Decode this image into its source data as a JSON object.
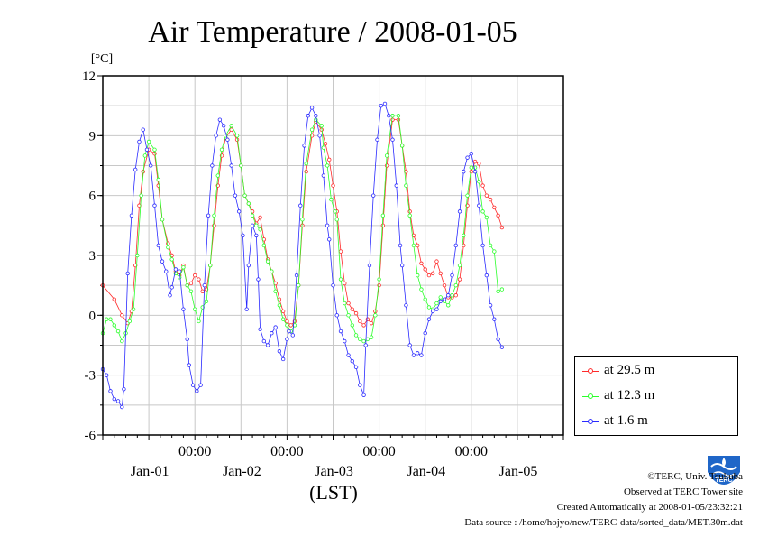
{
  "chart_data": {
    "type": "line",
    "title": "Air Temperature / 2008-01-05",
    "ylabel": "[°C]",
    "xlabel": "(LST)",
    "ylim": [
      -6,
      12
    ],
    "yticks": [
      -6,
      -3,
      0,
      3,
      6,
      9,
      12
    ],
    "xlim": [
      0,
      120
    ],
    "x_tick_labels": [
      {
        "x": 24,
        "time": "00:00",
        "date": "Jan-01"
      },
      {
        "x": 48,
        "time": "00:00",
        "date": "Jan-02"
      },
      {
        "x": 72,
        "time": "00:00",
        "date": "Jan-03"
      },
      {
        "x": 96,
        "time": "00:00",
        "date": "Jan-04"
      },
      {
        "x": 120,
        "time": "",
        "date": "Jan-05"
      }
    ],
    "grid": true,
    "series": [
      {
        "name": "at 29.5 m",
        "color": "#ff2a2a",
        "points": [
          [
            0,
            1.5
          ],
          [
            3,
            0.8
          ],
          [
            5,
            0.0
          ],
          [
            6.5,
            -0.4
          ],
          [
            7.5,
            0.2
          ],
          [
            8.5,
            2.5
          ],
          [
            9.5,
            5.5
          ],
          [
            10.5,
            7.2
          ],
          [
            12,
            8.3
          ],
          [
            13.5,
            8.1
          ],
          [
            14.5,
            6.5
          ],
          [
            15.5,
            4.8
          ],
          [
            17,
            3.6
          ],
          [
            18,
            3.0
          ],
          [
            19,
            2.2
          ],
          [
            20,
            2.0
          ],
          [
            21,
            2.5
          ],
          [
            22,
            1.5
          ],
          [
            23,
            1.6
          ],
          [
            24,
            2.0
          ],
          [
            25,
            1.8
          ],
          [
            26,
            1.2
          ],
          [
            27,
            1.3
          ],
          [
            28,
            2.5
          ],
          [
            29,
            4.5
          ],
          [
            30,
            6.5
          ],
          [
            31,
            8.0
          ],
          [
            32,
            8.9
          ],
          [
            33.5,
            9.3
          ],
          [
            35,
            8.8
          ],
          [
            36,
            7.5
          ],
          [
            37,
            6.0
          ],
          [
            38,
            5.6
          ],
          [
            39,
            5.2
          ],
          [
            40,
            4.6
          ],
          [
            41,
            4.9
          ],
          [
            42,
            3.8
          ],
          [
            43,
            2.8
          ],
          [
            44,
            2.2
          ],
          [
            45,
            1.6
          ],
          [
            46,
            0.8
          ],
          [
            47,
            0.2
          ],
          [
            48,
            -0.3
          ],
          [
            49,
            -0.5
          ],
          [
            50,
            -0.3
          ],
          [
            51,
            1.5
          ],
          [
            52,
            4.5
          ],
          [
            53,
            7.2
          ],
          [
            54.5,
            9.0
          ],
          [
            55.5,
            9.7
          ],
          [
            57,
            9.3
          ],
          [
            58,
            8.6
          ],
          [
            59,
            7.8
          ],
          [
            60,
            6.5
          ],
          [
            61,
            5.2
          ],
          [
            62,
            3.2
          ],
          [
            63,
            1.6
          ],
          [
            64,
            0.6
          ],
          [
            65,
            0.3
          ],
          [
            66,
            0.1
          ],
          [
            67,
            -0.3
          ],
          [
            68,
            -0.5
          ],
          [
            69,
            -0.2
          ],
          [
            70,
            -0.4
          ],
          [
            71,
            0.2
          ],
          [
            72,
            1.5
          ],
          [
            73,
            4.5
          ],
          [
            74,
            7.5
          ],
          [
            75.5,
            9.8
          ],
          [
            77,
            9.8
          ],
          [
            78,
            8.5
          ],
          [
            79,
            7.2
          ],
          [
            80,
            5.2
          ],
          [
            81,
            4.0
          ],
          [
            82,
            3.5
          ],
          [
            83,
            2.6
          ],
          [
            84,
            2.3
          ],
          [
            85,
            2.0
          ],
          [
            86,
            2.1
          ],
          [
            87,
            2.7
          ],
          [
            88,
            2.1
          ],
          [
            89,
            1.5
          ],
          [
            90,
            0.9
          ],
          [
            91,
            0.9
          ],
          [
            92,
            1.0
          ],
          [
            93,
            1.8
          ],
          [
            94,
            3.5
          ],
          [
            95,
            5.5
          ],
          [
            96,
            7.2
          ],
          [
            97,
            7.7
          ],
          [
            98,
            7.6
          ],
          [
            99,
            6.5
          ],
          [
            100,
            6.0
          ],
          [
            101,
            5.8
          ],
          [
            102,
            5.4
          ],
          [
            103,
            5.0
          ],
          [
            104,
            4.4
          ]
        ]
      },
      {
        "name": "at 12.3 m",
        "color": "#2aff2a",
        "points": [
          [
            0,
            -0.9
          ],
          [
            1,
            -0.2
          ],
          [
            2,
            -0.2
          ],
          [
            3,
            -0.5
          ],
          [
            4,
            -0.8
          ],
          [
            5,
            -1.3
          ],
          [
            6,
            -0.9
          ],
          [
            7,
            -0.3
          ],
          [
            8,
            0.3
          ],
          [
            9,
            3.0
          ],
          [
            10,
            6.0
          ],
          [
            11,
            8.0
          ],
          [
            12,
            8.7
          ],
          [
            13.5,
            8.3
          ],
          [
            14.5,
            6.8
          ],
          [
            15.5,
            4.8
          ],
          [
            17,
            3.4
          ],
          [
            18,
            2.8
          ],
          [
            19,
            2.1
          ],
          [
            20,
            1.9
          ],
          [
            21,
            2.4
          ],
          [
            22,
            1.5
          ],
          [
            23,
            1.2
          ],
          [
            24,
            0.3
          ],
          [
            25,
            -0.3
          ],
          [
            26,
            0.4
          ],
          [
            27,
            0.7
          ],
          [
            28,
            2.5
          ],
          [
            29,
            5.0
          ],
          [
            30,
            7.0
          ],
          [
            31,
            8.3
          ],
          [
            32,
            9.0
          ],
          [
            33.5,
            9.5
          ],
          [
            35,
            9.0
          ],
          [
            36,
            7.5
          ],
          [
            37,
            6.0
          ],
          [
            38,
            5.6
          ],
          [
            39,
            5.0
          ],
          [
            40,
            4.5
          ],
          [
            41,
            4.3
          ],
          [
            42,
            3.5
          ],
          [
            43,
            2.7
          ],
          [
            44,
            2.2
          ],
          [
            45,
            1.2
          ],
          [
            46,
            0.5
          ],
          [
            47,
            -0.2
          ],
          [
            48,
            -0.5
          ],
          [
            49,
            -0.8
          ],
          [
            50,
            -0.5
          ],
          [
            51,
            1.5
          ],
          [
            52,
            4.8
          ],
          [
            53,
            7.6
          ],
          [
            54.5,
            9.3
          ],
          [
            55.5,
            9.8
          ],
          [
            57,
            9.5
          ],
          [
            57.5,
            8.4
          ],
          [
            58.5,
            7.5
          ],
          [
            59.5,
            5.8
          ],
          [
            60.5,
            5.2
          ],
          [
            61,
            4.8
          ],
          [
            62,
            1.8
          ],
          [
            63,
            0.6
          ],
          [
            64,
            0.0
          ],
          [
            65,
            -0.5
          ],
          [
            66,
            -1.0
          ],
          [
            67,
            -1.2
          ],
          [
            68,
            -1.3
          ],
          [
            69,
            -1.2
          ],
          [
            70,
            -1.1
          ],
          [
            71,
            0.0
          ],
          [
            72,
            1.8
          ],
          [
            73,
            5.0
          ],
          [
            74,
            8.0
          ],
          [
            75.5,
            10.0
          ],
          [
            77,
            10.0
          ],
          [
            78,
            8.5
          ],
          [
            79,
            6.5
          ],
          [
            80,
            5.0
          ],
          [
            81,
            3.5
          ],
          [
            82,
            2.0
          ],
          [
            83,
            1.3
          ],
          [
            84,
            0.8
          ],
          [
            85,
            0.4
          ],
          [
            86,
            0.3
          ],
          [
            87,
            0.6
          ],
          [
            88,
            0.9
          ],
          [
            89,
            0.7
          ],
          [
            90,
            0.5
          ],
          [
            91,
            1.0
          ],
          [
            92,
            1.5
          ],
          [
            93,
            2.5
          ],
          [
            94,
            4.0
          ],
          [
            95,
            6.0
          ],
          [
            96,
            7.4
          ],
          [
            97,
            7.4
          ],
          [
            98,
            6.7
          ],
          [
            99,
            5.2
          ],
          [
            100,
            4.9
          ],
          [
            101,
            3.5
          ],
          [
            102,
            3.2
          ],
          [
            103,
            1.2
          ],
          [
            104,
            1.3
          ]
        ]
      },
      {
        "name": "at 1.6 m",
        "color": "#2a2aff",
        "points": [
          [
            0,
            -2.7
          ],
          [
            1,
            -3.0
          ],
          [
            2,
            -3.8
          ],
          [
            3,
            -4.2
          ],
          [
            4,
            -4.3
          ],
          [
            5,
            -4.6
          ],
          [
            5.5,
            -3.7
          ],
          [
            6.5,
            2.1
          ],
          [
            7.5,
            5.0
          ],
          [
            8.5,
            7.3
          ],
          [
            9.5,
            8.7
          ],
          [
            10.5,
            9.3
          ],
          [
            11.5,
            8.3
          ],
          [
            12.5,
            7.5
          ],
          [
            13.5,
            5.5
          ],
          [
            14.5,
            3.5
          ],
          [
            15.5,
            2.7
          ],
          [
            16.5,
            2.2
          ],
          [
            17.5,
            1.0
          ],
          [
            18,
            1.4
          ],
          [
            19,
            2.3
          ],
          [
            20,
            2.2
          ],
          [
            21,
            0.3
          ],
          [
            22,
            -1.2
          ],
          [
            22.5,
            -2.5
          ],
          [
            23.5,
            -3.5
          ],
          [
            24.5,
            -3.8
          ],
          [
            25.5,
            -3.5
          ],
          [
            26.5,
            1.5
          ],
          [
            27.5,
            5.0
          ],
          [
            28.5,
            7.5
          ],
          [
            29.5,
            9.0
          ],
          [
            30.5,
            9.8
          ],
          [
            31.5,
            9.5
          ],
          [
            32.5,
            8.8
          ],
          [
            33.5,
            7.5
          ],
          [
            34.5,
            6.0
          ],
          [
            35.5,
            5.2
          ],
          [
            36.5,
            4.0
          ],
          [
            37.5,
            0.3
          ],
          [
            38,
            2.5
          ],
          [
            39,
            4.5
          ],
          [
            40,
            4.0
          ],
          [
            40.5,
            1.8
          ],
          [
            41,
            -0.7
          ],
          [
            42,
            -1.3
          ],
          [
            43,
            -1.5
          ],
          [
            44,
            -0.9
          ],
          [
            45,
            -0.6
          ],
          [
            46,
            -1.8
          ],
          [
            47,
            -2.2
          ],
          [
            48,
            -1.2
          ],
          [
            48.5,
            -0.8
          ],
          [
            49.5,
            -1.0
          ],
          [
            50.5,
            2.0
          ],
          [
            51.5,
            5.5
          ],
          [
            52.5,
            8.5
          ],
          [
            53.5,
            10.0
          ],
          [
            54.5,
            10.4
          ],
          [
            55.5,
            10.0
          ],
          [
            56.5,
            9.0
          ],
          [
            57.5,
            7.0
          ],
          [
            58.5,
            4.5
          ],
          [
            59,
            3.8
          ],
          [
            60,
            1.5
          ],
          [
            61,
            0.0
          ],
          [
            62,
            -0.8
          ],
          [
            63,
            -1.3
          ],
          [
            64,
            -2.0
          ],
          [
            65,
            -2.3
          ],
          [
            66,
            -2.6
          ],
          [
            67,
            -3.5
          ],
          [
            68,
            -4.0
          ],
          [
            68.5,
            -1.5
          ],
          [
            69.5,
            2.5
          ],
          [
            70.5,
            6.0
          ],
          [
            71.5,
            8.8
          ],
          [
            72.5,
            10.5
          ],
          [
            73.5,
            10.6
          ],
          [
            74.5,
            10.0
          ],
          [
            75.5,
            8.8
          ],
          [
            76.5,
            6.5
          ],
          [
            77.5,
            3.5
          ],
          [
            78,
            2.5
          ],
          [
            79,
            0.5
          ],
          [
            80,
            -1.5
          ],
          [
            81,
            -2.0
          ],
          [
            82,
            -1.9
          ],
          [
            83,
            -2.0
          ],
          [
            84,
            -0.9
          ],
          [
            85,
            -0.2
          ],
          [
            86,
            0.2
          ],
          [
            87,
            0.3
          ],
          [
            88,
            0.7
          ],
          [
            89,
            0.8
          ],
          [
            90,
            1.0
          ],
          [
            91,
            2.0
          ],
          [
            92,
            3.5
          ],
          [
            93,
            5.2
          ],
          [
            94,
            7.2
          ],
          [
            95,
            7.9
          ],
          [
            96,
            8.1
          ],
          [
            97,
            7.2
          ],
          [
            98,
            5.5
          ],
          [
            99,
            3.5
          ],
          [
            100,
            2.0
          ],
          [
            101,
            0.5
          ],
          [
            102,
            -0.2
          ],
          [
            103,
            -1.2
          ],
          [
            104,
            -1.6
          ]
        ]
      }
    ]
  },
  "footer": {
    "copyright": "©TERC, Univ. Tsukuba",
    "observed": "Observed at TERC Tower site",
    "created": "Created Automatically at 2008-01-05/23:32:21",
    "source": "Data source : /home/hojyo/new/TERC-data/sorted_data/MET.30m.dat"
  },
  "logo": {
    "text": "TERC",
    "color": "#1f66c8"
  }
}
